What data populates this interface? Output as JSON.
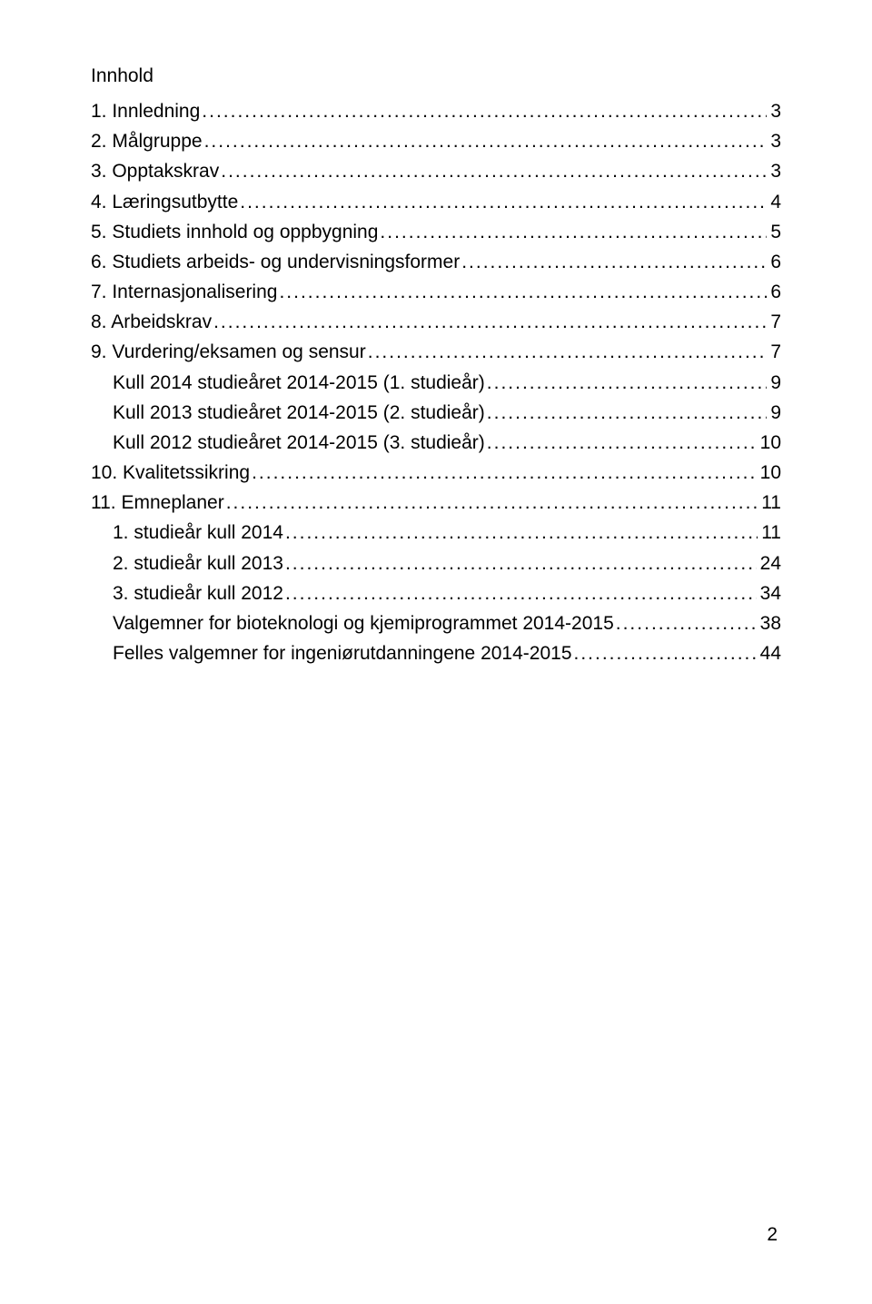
{
  "title": "Innhold",
  "page_number": "2",
  "colors": {
    "background": "#ffffff",
    "text": "#000000"
  },
  "typography": {
    "body_fontsize_pt": 16,
    "font_family": "Arial"
  },
  "toc": [
    {
      "label": "1. Innledning",
      "page": "3",
      "indent": 0
    },
    {
      "label": "2. Målgruppe",
      "page": "3",
      "indent": 0
    },
    {
      "label": "3. Opptakskrav",
      "page": "3",
      "indent": 0
    },
    {
      "label": "4. Læringsutbytte",
      "page": "4",
      "indent": 0
    },
    {
      "label": "5. Studiets innhold og oppbygning",
      "page": "5",
      "indent": 0
    },
    {
      "label": "6. Studiets arbeids- og undervisningsformer",
      "page": "6",
      "indent": 0
    },
    {
      "label": "7. Internasjonalisering",
      "page": "6",
      "indent": 0
    },
    {
      "label": "8. Arbeidskrav",
      "page": "7",
      "indent": 0
    },
    {
      "label": "9. Vurdering/eksamen og sensur",
      "page": "7",
      "indent": 0
    },
    {
      "label": "Kull 2014 studieåret 2014-2015 (1. studieår)",
      "page": "9",
      "indent": 1
    },
    {
      "label": "Kull 2013 studieåret 2014-2015 (2. studieår)",
      "page": "9",
      "indent": 1
    },
    {
      "label": "Kull 2012 studieåret 2014-2015 (3. studieår)",
      "page": "10",
      "indent": 1
    },
    {
      "label": "10. Kvalitetssikring",
      "page": "10",
      "indent": 0
    },
    {
      "label": "11. Emneplaner",
      "page": "11",
      "indent": 0
    },
    {
      "label": "1. studieår kull 2014",
      "page": "11",
      "indent": 1
    },
    {
      "label": "2. studieår kull 2013",
      "page": "24",
      "indent": 1
    },
    {
      "label": "3. studieår kull 2012",
      "page": "34",
      "indent": 1
    },
    {
      "label": "Valgemner for bioteknologi og kjemiprogrammet 2014-2015",
      "page": "38",
      "indent": 1
    },
    {
      "label": "Felles valgemner for ingeniørutdanningene 2014-2015",
      "page": "44",
      "indent": 1
    }
  ]
}
